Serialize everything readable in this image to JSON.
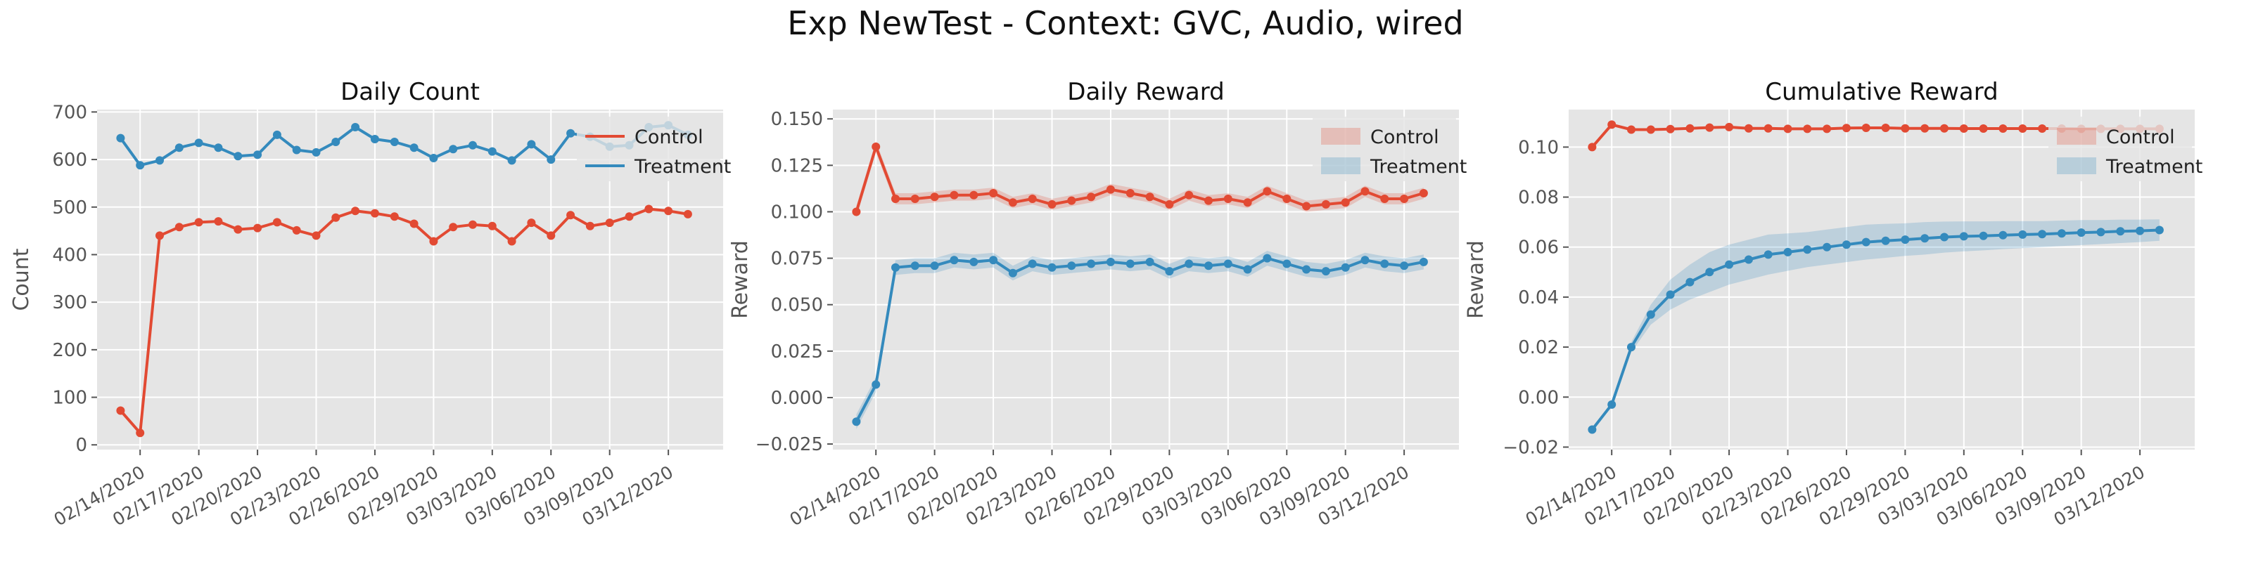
{
  "figure": {
    "title": "Exp NewTest - Context: GVC, Audio, wired"
  },
  "colors": {
    "control": "#E24A33",
    "treatment": "#348ABD",
    "panel_bg": "#E5E5E5",
    "grid": "#FFFFFF",
    "tick_text": "#555555",
    "title_text": "#111111"
  },
  "chart_data": [
    {
      "type": "line",
      "title": "Daily Count",
      "xlabel": "",
      "ylabel": "Count",
      "ylim": [
        -10,
        705
      ],
      "y_ticks": [
        0,
        100,
        200,
        300,
        400,
        500,
        600,
        700
      ],
      "y_tick_labels": [
        "0",
        "100",
        "200",
        "300",
        "400",
        "500",
        "600",
        "700"
      ],
      "x_dates": [
        "02/13/2020",
        "02/14/2020",
        "02/15/2020",
        "02/16/2020",
        "02/17/2020",
        "02/18/2020",
        "02/19/2020",
        "02/20/2020",
        "02/21/2020",
        "02/22/2020",
        "02/23/2020",
        "02/24/2020",
        "02/25/2020",
        "02/26/2020",
        "02/27/2020",
        "02/28/2020",
        "02/29/2020",
        "03/01/2020",
        "03/02/2020",
        "03/03/2020",
        "03/04/2020",
        "03/05/2020",
        "03/06/2020",
        "03/07/2020",
        "03/08/2020",
        "03/09/2020",
        "03/10/2020",
        "03/11/2020",
        "03/12/2020",
        "03/13/2020",
        "03/14/2020"
      ],
      "x_ticks": [
        "02/14/2020",
        "02/17/2020",
        "02/20/2020",
        "02/23/2020",
        "02/26/2020",
        "02/29/2020",
        "03/03/2020",
        "03/06/2020",
        "03/09/2020",
        "03/12/2020"
      ],
      "x_tick_labels": [
        "02/14/2020",
        "02/17/2020",
        "02/20/2020",
        "02/23/2020",
        "02/26/2020",
        "02/29/2020",
        "03/03/2020",
        "03/06/2020",
        "03/09/2020",
        "03/12/2020"
      ],
      "grid": true,
      "legend": {
        "placement": "top-right",
        "style": "line"
      },
      "series": [
        {
          "name": "Control",
          "color": "#E24A33",
          "values": [
            72,
            25,
            440,
            458,
            468,
            470,
            453,
            456,
            468,
            451,
            440,
            478,
            492,
            487,
            480,
            465,
            428,
            458,
            463,
            460,
            428,
            467,
            440,
            483,
            460,
            467,
            480,
            496,
            492,
            485,
            null
          ]
        },
        {
          "name": "Treatment",
          "color": "#348ABD",
          "values": [
            645,
            588,
            598,
            625,
            635,
            625,
            607,
            610,
            652,
            620,
            615,
            637,
            668,
            643,
            637,
            625,
            603,
            622,
            630,
            617,
            598,
            632,
            600,
            655,
            648,
            627,
            630,
            668,
            672,
            652,
            null
          ]
        }
      ]
    },
    {
      "type": "line",
      "title": "Daily Reward",
      "xlabel": "",
      "ylabel": "Reward",
      "ylim": [
        -0.028,
        0.155
      ],
      "y_ticks": [
        -0.025,
        0.0,
        0.025,
        0.05,
        0.075,
        0.1,
        0.125,
        0.15
      ],
      "y_tick_labels": [
        "−0.025",
        "0.000",
        "0.025",
        "0.050",
        "0.075",
        "0.100",
        "0.125",
        "0.150"
      ],
      "x_dates": [
        "02/13/2020",
        "02/14/2020",
        "02/15/2020",
        "02/16/2020",
        "02/17/2020",
        "02/18/2020",
        "02/19/2020",
        "02/20/2020",
        "02/21/2020",
        "02/22/2020",
        "02/23/2020",
        "02/24/2020",
        "02/25/2020",
        "02/26/2020",
        "02/27/2020",
        "02/28/2020",
        "02/29/2020",
        "03/01/2020",
        "03/02/2020",
        "03/03/2020",
        "03/04/2020",
        "03/05/2020",
        "03/06/2020",
        "03/07/2020",
        "03/08/2020",
        "03/09/2020",
        "03/10/2020",
        "03/11/2020",
        "03/12/2020",
        "03/13/2020",
        "03/14/2020"
      ],
      "x_ticks": [
        "02/14/2020",
        "02/17/2020",
        "02/20/2020",
        "02/23/2020",
        "02/26/2020",
        "02/29/2020",
        "03/03/2020",
        "03/06/2020",
        "03/09/2020",
        "03/12/2020"
      ],
      "x_tick_labels": [
        "02/14/2020",
        "02/17/2020",
        "02/20/2020",
        "02/23/2020",
        "02/26/2020",
        "02/29/2020",
        "03/03/2020",
        "03/06/2020",
        "03/09/2020",
        "03/12/2020"
      ],
      "grid": true,
      "legend": {
        "placement": "top-right",
        "style": "patch"
      },
      "series": [
        {
          "name": "Control",
          "color": "#E24A33",
          "band": 0.003,
          "values": [
            0.1,
            0.135,
            0.107,
            0.107,
            0.108,
            0.109,
            0.109,
            0.11,
            0.105,
            0.107,
            0.104,
            0.106,
            0.108,
            0.112,
            0.11,
            0.108,
            0.104,
            0.109,
            0.106,
            0.107,
            0.105,
            0.111,
            0.107,
            0.103,
            0.104,
            0.105,
            0.111,
            0.107,
            0.107,
            0.11,
            null
          ]
        },
        {
          "name": "Treatment",
          "color": "#348ABD",
          "band": 0.004,
          "values": [
            -0.013,
            0.007,
            0.07,
            0.071,
            0.071,
            0.074,
            0.073,
            0.074,
            0.067,
            0.072,
            0.07,
            0.071,
            0.072,
            0.073,
            0.072,
            0.073,
            0.068,
            0.072,
            0.071,
            0.072,
            0.069,
            0.075,
            0.072,
            0.069,
            0.068,
            0.07,
            0.074,
            0.072,
            0.071,
            0.073,
            null
          ]
        }
      ]
    },
    {
      "type": "line",
      "title": "Cumulative Reward",
      "xlabel": "",
      "ylabel": "Reward",
      "ylim": [
        -0.021,
        0.115
      ],
      "y_ticks": [
        -0.02,
        0.0,
        0.02,
        0.04,
        0.06,
        0.08,
        0.1
      ],
      "y_tick_labels": [
        "−0.02",
        "0.00",
        "0.02",
        "0.04",
        "0.06",
        "0.08",
        "0.10"
      ],
      "x_dates": [
        "02/13/2020",
        "02/14/2020",
        "02/15/2020",
        "02/16/2020",
        "02/17/2020",
        "02/18/2020",
        "02/19/2020",
        "02/20/2020",
        "02/21/2020",
        "02/22/2020",
        "02/23/2020",
        "02/24/2020",
        "02/25/2020",
        "02/26/2020",
        "02/27/2020",
        "02/28/2020",
        "02/29/2020",
        "03/01/2020",
        "03/02/2020",
        "03/03/2020",
        "03/04/2020",
        "03/05/2020",
        "03/06/2020",
        "03/07/2020",
        "03/08/2020",
        "03/09/2020",
        "03/10/2020",
        "03/11/2020",
        "03/12/2020",
        "03/13/2020",
        "03/14/2020"
      ],
      "x_ticks": [
        "02/14/2020",
        "02/17/2020",
        "02/20/2020",
        "02/23/2020",
        "02/26/2020",
        "02/29/2020",
        "03/03/2020",
        "03/06/2020",
        "03/09/2020",
        "03/12/2020"
      ],
      "x_tick_labels": [
        "02/14/2020",
        "02/17/2020",
        "02/20/2020",
        "02/23/2020",
        "02/26/2020",
        "02/29/2020",
        "03/03/2020",
        "03/06/2020",
        "03/09/2020",
        "03/12/2020"
      ],
      "grid": true,
      "legend": {
        "placement": "top-right",
        "style": "patch"
      },
      "series": [
        {
          "name": "Control",
          "color": "#E24A33",
          "values": [
            0.1,
            0.109,
            0.107,
            0.107,
            0.1072,
            0.1075,
            0.1078,
            0.108,
            0.1075,
            0.1075,
            0.1073,
            0.1073,
            0.1073,
            0.1076,
            0.1077,
            0.1077,
            0.1075,
            0.1075,
            0.1075,
            0.1074,
            0.1074,
            0.1074,
            0.1074,
            0.1074,
            0.1074,
            0.1073,
            0.1073,
            0.1073,
            0.1073,
            0.1073,
            null
          ],
          "band_lower": [
            0.1,
            0.109,
            0.107,
            0.107,
            0.1072,
            0.1075,
            0.1078,
            0.108,
            0.1075,
            0.1075,
            0.1073,
            0.1073,
            0.1073,
            0.1076,
            0.1077,
            0.1077,
            0.1075,
            0.1075,
            0.1075,
            0.1074,
            0.1074,
            0.1074,
            0.1074,
            0.1074,
            0.1074,
            0.1073,
            0.1073,
            0.1073,
            0.1073,
            0.1073,
            null
          ],
          "band_upper": [
            0.1,
            0.109,
            0.107,
            0.107,
            0.1072,
            0.1075,
            0.1078,
            0.108,
            0.1075,
            0.1075,
            0.1073,
            0.1073,
            0.1073,
            0.1076,
            0.1077,
            0.1077,
            0.1075,
            0.1075,
            0.1075,
            0.1074,
            0.1074,
            0.1074,
            0.1074,
            0.1074,
            0.1074,
            0.1073,
            0.1073,
            0.1073,
            0.1073,
            0.1073,
            null
          ]
        },
        {
          "name": "Treatment",
          "color": "#348ABD",
          "values": [
            -0.013,
            -0.003,
            0.02,
            0.033,
            0.041,
            0.046,
            0.05,
            0.053,
            0.055,
            0.057,
            0.058,
            0.059,
            0.06,
            0.061,
            0.062,
            0.0625,
            0.063,
            0.0635,
            0.064,
            0.0643,
            0.0645,
            0.0648,
            0.065,
            0.0652,
            0.0655,
            0.0658,
            0.066,
            0.0663,
            0.0665,
            0.0668,
            null
          ],
          "band_lower": [
            -0.013,
            -0.003,
            0.018,
            0.029,
            0.035,
            0.039,
            0.042,
            0.045,
            0.047,
            0.049,
            0.0505,
            0.052,
            0.053,
            0.054,
            0.055,
            0.0557,
            0.0565,
            0.057,
            0.0578,
            0.0583,
            0.0587,
            0.0592,
            0.0596,
            0.06,
            0.0604,
            0.0608,
            0.0612,
            0.0616,
            0.062,
            0.0625,
            null
          ],
          "band_upper": [
            -0.013,
            -0.003,
            0.022,
            0.037,
            0.047,
            0.053,
            0.058,
            0.061,
            0.063,
            0.065,
            0.0655,
            0.066,
            0.067,
            0.068,
            0.069,
            0.0693,
            0.0695,
            0.07,
            0.0702,
            0.0703,
            0.0703,
            0.0704,
            0.0704,
            0.0704,
            0.0706,
            0.0708,
            0.0708,
            0.071,
            0.071,
            0.0711,
            null
          ]
        }
      ]
    }
  ]
}
